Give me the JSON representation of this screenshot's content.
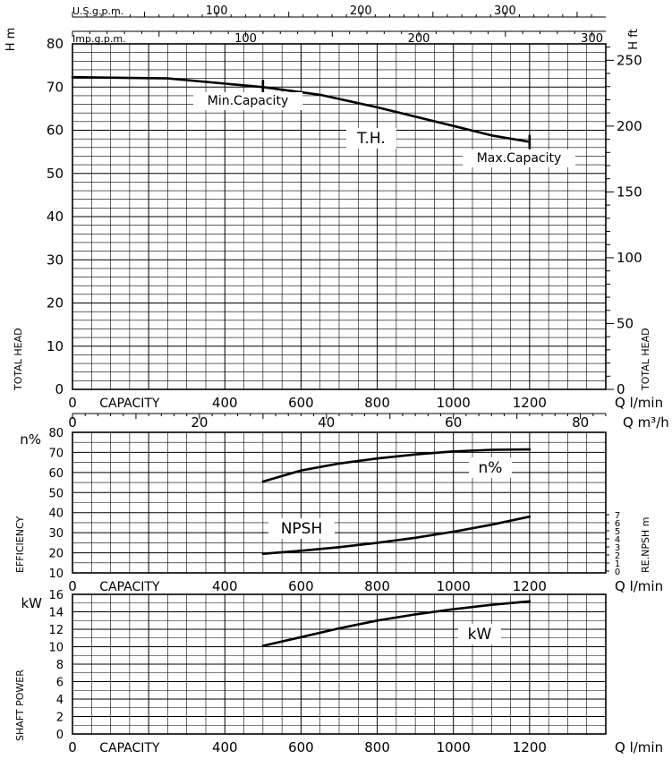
{
  "chart_data": [
    {
      "type": "line",
      "name": "head",
      "title": "",
      "xlabel": "CAPACITY",
      "x_unit": "Q l/min",
      "xlim": [
        0,
        1400
      ],
      "x_ticks": [
        0,
        400,
        600,
        800,
        1000,
        1200
      ],
      "ylabel": "TOTAL HEAD",
      "y_unit": "H m",
      "ylim": [
        0,
        80
      ],
      "y_ticks": [
        0,
        10,
        20,
        30,
        40,
        50,
        60,
        70,
        80
      ],
      "y2_label": "TOTAL HEAD",
      "y2_unit": "H ft",
      "y2_ticks": [
        0,
        50,
        100,
        150,
        200,
        250
      ],
      "top_axis_usgpm_label": "U.S.g.p.m.",
      "top_axis_usgpm_ticks": [
        100,
        200,
        300
      ],
      "top_axis_impgpm_label": "Imp.g.p.m.",
      "top_axis_impgpm_ticks": [
        100,
        200,
        300
      ],
      "m3h_label": "Q m³/h",
      "m3h_ticks": [
        0,
        20,
        40,
        60,
        80
      ],
      "series": [
        {
          "name": "T.H.",
          "x": [
            0,
            250,
            500,
            650,
            800,
            1000,
            1100,
            1200
          ],
          "y": [
            72.3,
            72.0,
            70.0,
            68.2,
            65.3,
            61.0,
            58.8,
            57.3
          ]
        }
      ],
      "annotations": [
        {
          "text": "Min.Capacity",
          "x": 500,
          "y": 70
        },
        {
          "text": "Max.Capacity",
          "x": 1200,
          "y": 57.3
        },
        {
          "text": "T.H.",
          "x": 775,
          "y": 60
        }
      ]
    },
    {
      "type": "line",
      "name": "efficiency",
      "xlabel": "CAPACITY",
      "x_unit": "Q l/min",
      "xlim": [
        0,
        1400
      ],
      "x_ticks": [
        0,
        400,
        600,
        800,
        1000,
        1200
      ],
      "ylabel": "EFFICIENCY",
      "y_unit": "n%",
      "ylim": [
        10,
        80
      ],
      "y_ticks": [
        10,
        20,
        30,
        40,
        50,
        60,
        70,
        80
      ],
      "y2_label": "RE.NPSH m",
      "y2_ticks": [
        0,
        1,
        2,
        3,
        4,
        5,
        6,
        7
      ],
      "series": [
        {
          "name": "n%",
          "x": [
            500,
            600,
            700,
            800,
            900,
            1000,
            1100,
            1200
          ],
          "y": [
            55.5,
            61,
            64.5,
            67,
            69,
            70.5,
            71.3,
            71.5
          ]
        },
        {
          "name": "NPSH",
          "x": [
            500,
            600,
            700,
            800,
            900,
            1000,
            1100,
            1200
          ],
          "y": [
            19.5,
            21,
            22.8,
            25,
            27.5,
            30.5,
            34,
            38
          ]
        }
      ],
      "annotations": [
        {
          "text": "n%",
          "x": 1030,
          "y": 67
        },
        {
          "text": "NPSH",
          "x": 590,
          "y": 35
        }
      ]
    },
    {
      "type": "line",
      "name": "power",
      "xlabel": "CAPACITY",
      "x_unit": "Q l/min",
      "xlim": [
        0,
        1400
      ],
      "x_ticks": [
        0,
        400,
        600,
        800,
        1000,
        1200
      ],
      "ylabel": "SHAFT POWER",
      "y_unit": "kW",
      "ylim": [
        0,
        16
      ],
      "y_ticks": [
        0,
        2,
        4,
        6,
        8,
        10,
        12,
        14,
        16
      ],
      "series": [
        {
          "name": "kW",
          "x": [
            500,
            600,
            700,
            800,
            900,
            1000,
            1100,
            1200
          ],
          "y": [
            10.1,
            11.1,
            12.1,
            13.0,
            13.7,
            14.3,
            14.8,
            15.2
          ]
        }
      ],
      "annotations": [
        {
          "text": "kW",
          "x": 1050,
          "y": 11.5
        }
      ]
    }
  ]
}
